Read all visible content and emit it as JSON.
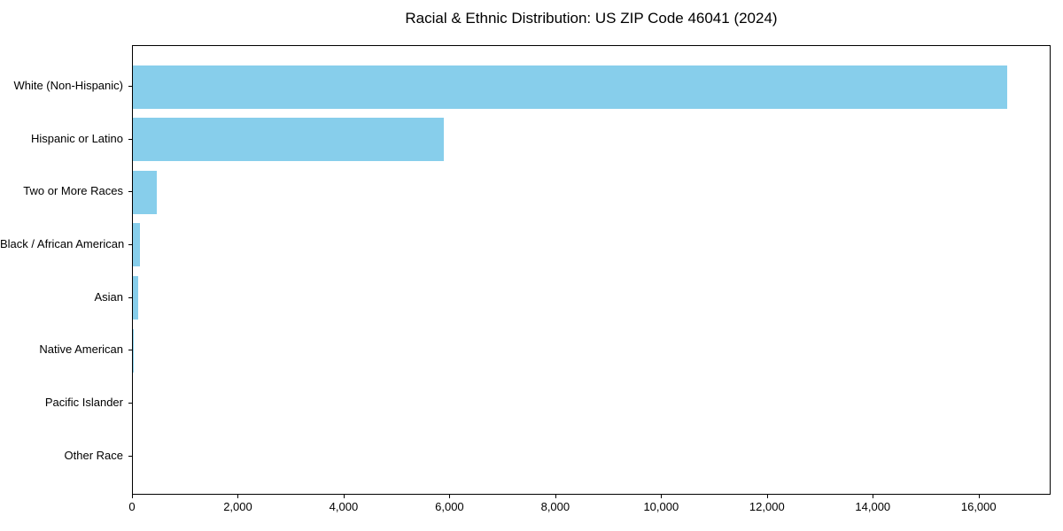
{
  "chart_data": {
    "type": "bar",
    "orientation": "horizontal",
    "title": "Racial & Ethnic Distribution: US ZIP Code 46041 (2024)",
    "categories": [
      "White (Non-Hispanic)",
      "Hispanic or Latino",
      "Two or More Races",
      "Black / African American",
      "Asian",
      "Native American",
      "Pacific Islander",
      "Other Race"
    ],
    "values": [
      16530,
      5870,
      450,
      130,
      100,
      20,
      0,
      0
    ],
    "bar_color": "#87CEEB",
    "xlim": [
      0,
      17360
    ],
    "x_ticks": [
      0,
      2000,
      4000,
      6000,
      8000,
      10000,
      12000,
      14000,
      16000
    ],
    "x_tick_labels": [
      "0",
      "2,000",
      "4,000",
      "6,000",
      "8,000",
      "10,000",
      "12,000",
      "14,000",
      "16,000"
    ],
    "xlabel": "",
    "ylabel": "",
    "grid": false,
    "legend": null
  }
}
